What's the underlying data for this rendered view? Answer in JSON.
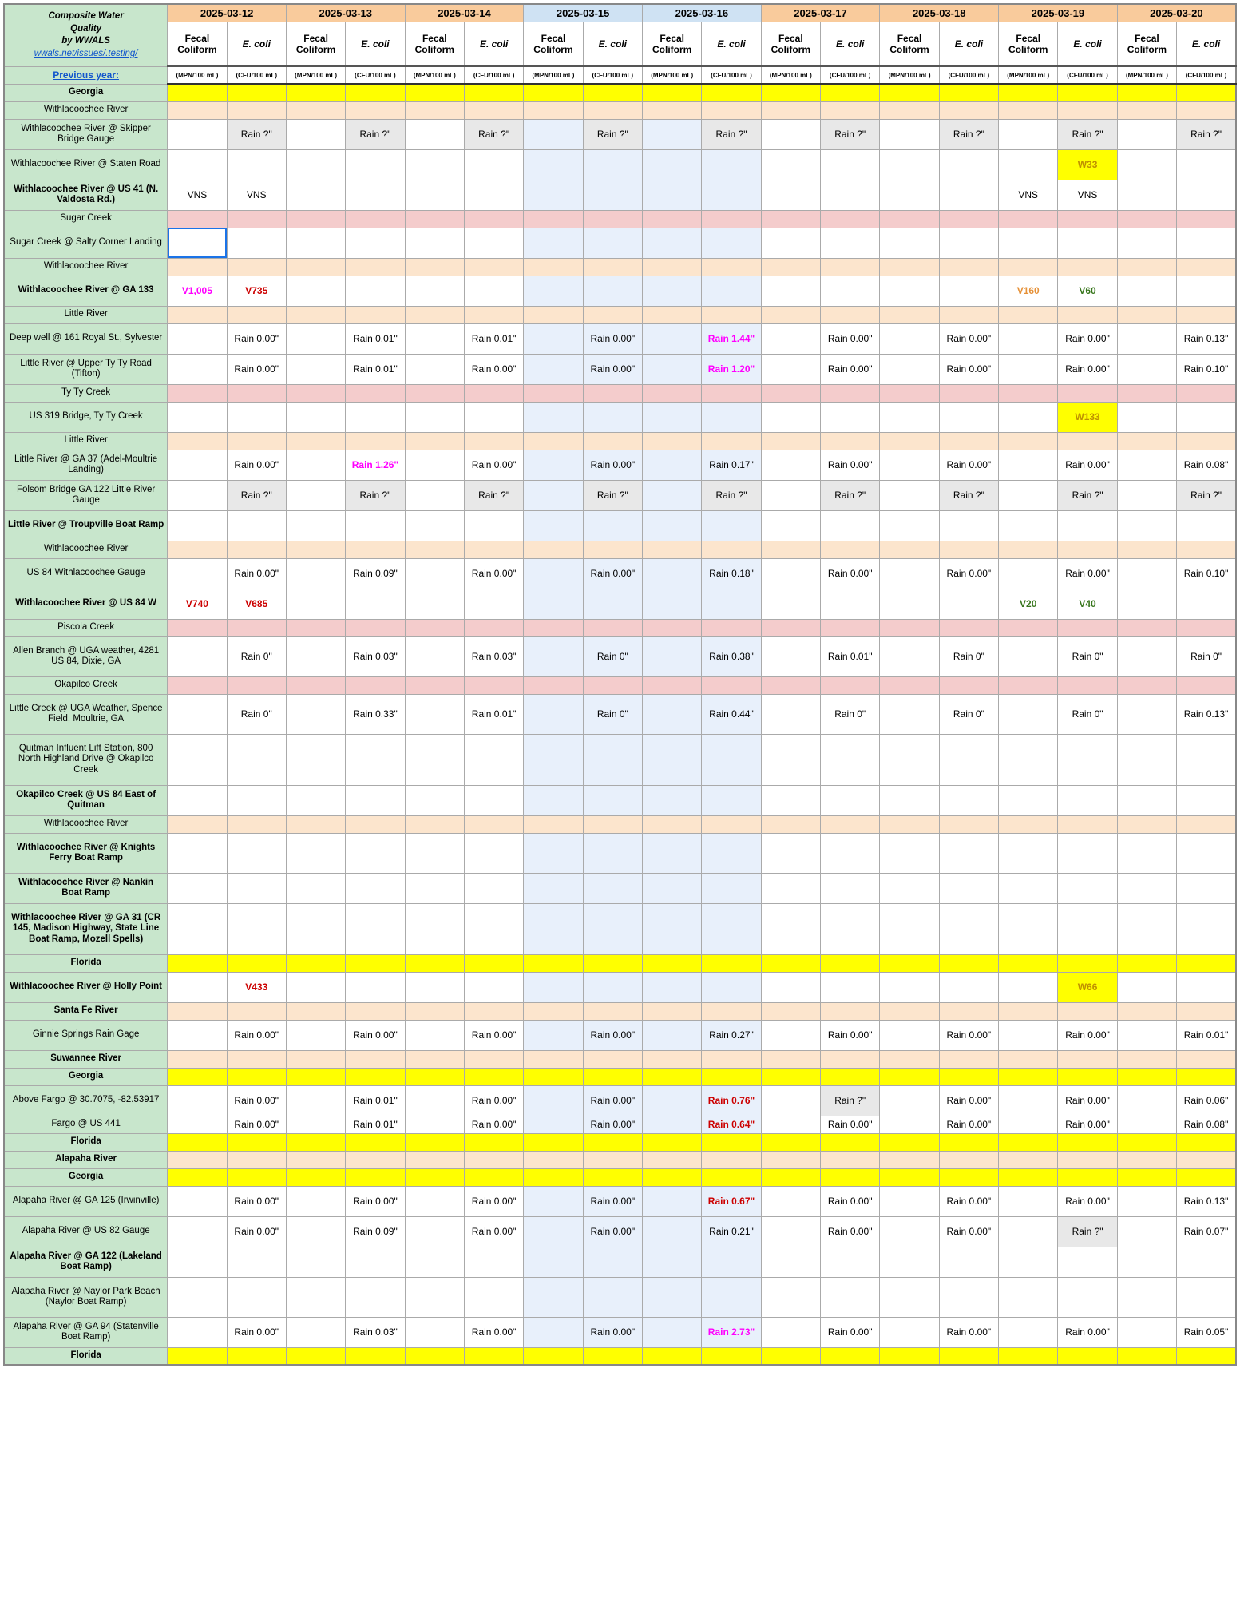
{
  "header": {
    "title_lines": [
      "Composite Water",
      "Quality",
      "by WWALS"
    ],
    "link1_text": "wwals.net/issues/.testing/",
    "prev_year_label": "Previous year:",
    "dates": [
      "2025-03-12",
      "2025-03-13",
      "2025-03-14",
      "2025-03-15",
      "2025-03-16",
      "2025-03-17",
      "2025-03-18",
      "2025-03-19",
      "2025-03-20"
    ],
    "weekend_indices": [
      3,
      4
    ],
    "sub_labels": [
      "Fecal Coliform",
      "E. coli"
    ],
    "unit_labels": [
      "(MPN/100 mL)",
      "(CFU/100 mL)"
    ]
  },
  "colors": {
    "green_hdr": "#c8e6cc",
    "date_orange": "#f9cb9c",
    "date_blue": "#cfe2f3",
    "yellow": "#ffff00",
    "peach": "#fce5cd",
    "pink": "#f4cccc",
    "grey": "#e8e8e8",
    "ltblue": "#e8f0fb",
    "white": "#ffffff"
  },
  "rows": [
    {
      "label": "Georgia",
      "bold": true,
      "fill": "yellow"
    },
    {
      "label": "Withlacoochee River",
      "fill": "peach"
    },
    {
      "label": "Withlacoochee River @ Skipper Bridge Gauge",
      "tall": true,
      "cells": {
        "1": {
          "t": "Rain ?\"",
          "bg": "grey"
        },
        "3": {
          "t": "Rain ?\"",
          "bg": "grey"
        },
        "5": {
          "t": "Rain ?\"",
          "bg": "grey"
        },
        "7": {
          "t": "Rain ?\"",
          "bg": "grey"
        },
        "9": {
          "t": "Rain ?\"",
          "bg": "grey"
        },
        "11": {
          "t": "Rain ?\"",
          "bg": "grey"
        },
        "13": {
          "t": "Rain ?\"",
          "bg": "grey"
        },
        "15": {
          "t": "Rain ?\"",
          "bg": "grey"
        },
        "17": {
          "t": "Rain ?\"",
          "bg": "grey"
        }
      }
    },
    {
      "label": "Withlacoochee River @ Staten Road",
      "tall": true,
      "cells": {
        "15": {
          "t": "W33",
          "bg": "yellow",
          "cls": "txt-olive"
        }
      }
    },
    {
      "label": "Withlacoochee River @ US 41 (N. Valdosta Rd.)",
      "bold": true,
      "tall": true,
      "cells": {
        "0": {
          "t": "VNS"
        },
        "1": {
          "t": "VNS"
        },
        "14": {
          "t": "VNS"
        },
        "15": {
          "t": "VNS"
        }
      }
    },
    {
      "label": "Sugar Creek",
      "fill": "pink"
    },
    {
      "label": "Sugar Creek @ Salty Corner Landing",
      "tall": true,
      "cells": {
        "0": {
          "t": "",
          "bg": "white",
          "sel": true
        }
      }
    },
    {
      "label": "Withlacoochee River",
      "fill": "peach"
    },
    {
      "label": "Withlacoochee River @ GA 133",
      "bold": true,
      "tall": true,
      "cells": {
        "0": {
          "t": "V1,005",
          "cls": "txt-magenta"
        },
        "1": {
          "t": "V735",
          "cls": "txt-red"
        },
        "14": {
          "t": "V160",
          "cls": "txt-orange"
        },
        "15": {
          "t": "V60",
          "cls": "txt-green"
        }
      }
    },
    {
      "label": "Little River",
      "fill": "peach"
    },
    {
      "label": "Deep well @ 161 Royal St., Sylvester",
      "tall": true,
      "cells": {
        "1": {
          "t": "Rain 0.00\""
        },
        "3": {
          "t": "Rain 0.01\""
        },
        "5": {
          "t": "Rain 0.01\""
        },
        "7": {
          "t": "Rain 0.00\""
        },
        "9": {
          "t": "Rain 1.44\"",
          "cls": "txt-magenta"
        },
        "11": {
          "t": "Rain 0.00\""
        },
        "13": {
          "t": "Rain 0.00\""
        },
        "15": {
          "t": "Rain 0.00\""
        },
        "17": {
          "t": "Rain 0.13\""
        }
      }
    },
    {
      "label": "Little River @ Upper Ty Ty Road (Tifton)",
      "tall": true,
      "cells": {
        "1": {
          "t": "Rain 0.00\""
        },
        "3": {
          "t": "Rain 0.01\""
        },
        "5": {
          "t": "Rain 0.00\""
        },
        "7": {
          "t": "Rain 0.00\""
        },
        "9": {
          "t": "Rain 1.20\"",
          "cls": "txt-magenta"
        },
        "11": {
          "t": "Rain 0.00\""
        },
        "13": {
          "t": "Rain 0.00\""
        },
        "15": {
          "t": "Rain 0.00\""
        },
        "17": {
          "t": "Rain 0.10\""
        }
      }
    },
    {
      "label": "Ty Ty Creek",
      "fill": "pink"
    },
    {
      "label": "US 319 Bridge, Ty Ty Creek",
      "tall": true,
      "cells": {
        "15": {
          "t": "W133",
          "bg": "yellow",
          "cls": "txt-olive"
        }
      }
    },
    {
      "label": "Little River",
      "fill": "peach"
    },
    {
      "label": "Little River @ GA 37 (Adel-Moultrie Landing)",
      "tall": true,
      "cells": {
        "1": {
          "t": "Rain 0.00\""
        },
        "3": {
          "t": "Rain 1.26\"",
          "cls": "txt-magenta"
        },
        "5": {
          "t": "Rain 0.00\""
        },
        "7": {
          "t": "Rain 0.00\""
        },
        "9": {
          "t": "Rain 0.17\""
        },
        "11": {
          "t": "Rain 0.00\""
        },
        "13": {
          "t": "Rain 0.00\""
        },
        "15": {
          "t": "Rain 0.00\""
        },
        "17": {
          "t": "Rain 0.08\""
        }
      }
    },
    {
      "label": "Folsom Bridge GA 122 Little River Gauge",
      "tall": true,
      "cells": {
        "1": {
          "t": "Rain ?\"",
          "bg": "grey"
        },
        "3": {
          "t": "Rain ?\"",
          "bg": "grey"
        },
        "5": {
          "t": "Rain ?\"",
          "bg": "grey"
        },
        "7": {
          "t": "Rain ?\"",
          "bg": "grey"
        },
        "9": {
          "t": "Rain ?\"",
          "bg": "grey"
        },
        "11": {
          "t": "Rain ?\"",
          "bg": "grey"
        },
        "13": {
          "t": "Rain ?\"",
          "bg": "grey"
        },
        "15": {
          "t": "Rain ?\"",
          "bg": "grey"
        },
        "17": {
          "t": "Rain ?\"",
          "bg": "grey"
        }
      }
    },
    {
      "label": "Little River @ Troupville Boat Ramp",
      "bold": true,
      "tall": true
    },
    {
      "label": "Withlacoochee River",
      "fill": "peach"
    },
    {
      "label": "US 84 Withlacoochee Gauge",
      "tall": true,
      "cells": {
        "1": {
          "t": "Rain 0.00\""
        },
        "3": {
          "t": "Rain 0.09\""
        },
        "5": {
          "t": "Rain 0.00\""
        },
        "7": {
          "t": "Rain 0.00\""
        },
        "9": {
          "t": "Rain 0.18\""
        },
        "11": {
          "t": "Rain 0.00\""
        },
        "13": {
          "t": "Rain 0.00\""
        },
        "15": {
          "t": "Rain 0.00\""
        },
        "17": {
          "t": "Rain 0.10\""
        }
      }
    },
    {
      "label": "Withlacoochee River @ US 84 W",
      "bold": true,
      "tall": true,
      "cells": {
        "0": {
          "t": "V740",
          "cls": "txt-red"
        },
        "1": {
          "t": "V685",
          "cls": "txt-red"
        },
        "14": {
          "t": "V20",
          "cls": "txt-green"
        },
        "15": {
          "t": "V40",
          "cls": "txt-green"
        }
      }
    },
    {
      "label": "Piscola Creek",
      "fill": "pink"
    },
    {
      "label": "Allen  Branch @ UGA weather, 4281 US 84, Dixie, GA",
      "tall3": true,
      "cells": {
        "1": {
          "t": "Rain 0\""
        },
        "3": {
          "t": "Rain 0.03\""
        },
        "5": {
          "t": "Rain 0.03\""
        },
        "7": {
          "t": "Rain 0\""
        },
        "9": {
          "t": "Rain 0.38\""
        },
        "11": {
          "t": "Rain 0.01\""
        },
        "13": {
          "t": "Rain 0\""
        },
        "15": {
          "t": "Rain 0\""
        },
        "17": {
          "t": "Rain 0\""
        }
      }
    },
    {
      "label": "Okapilco Creek",
      "fill": "pink"
    },
    {
      "label": "Little Creek @ UGA Weather, Spence Field, Moultrie, GA",
      "tall3": true,
      "cells": {
        "1": {
          "t": "Rain 0\""
        },
        "3": {
          "t": "Rain 0.33\""
        },
        "5": {
          "t": "Rain 0.01\""
        },
        "7": {
          "t": "Rain 0\""
        },
        "9": {
          "t": "Rain 0.44\""
        },
        "11": {
          "t": "Rain 0\""
        },
        "13": {
          "t": "Rain 0\""
        },
        "15": {
          "t": "Rain 0\""
        },
        "17": {
          "t": "Rain 0.13\""
        }
      }
    },
    {
      "label": "Quitman Influent Lift Station, 800 North Highland Drive @ Okapilco Creek",
      "tall4": true
    },
    {
      "label": "Okapilco Creek @ US 84 East of Quitman",
      "bold": true,
      "tall": true
    },
    {
      "label": "Withlacoochee River",
      "fill": "peach"
    },
    {
      "label": "Withlacoochee River @ Knights Ferry Boat Ramp",
      "bold": true,
      "tall3": true
    },
    {
      "label": "Withlacoochee River @ Nankin Boat Ramp",
      "bold": true,
      "tall": true
    },
    {
      "label": "Withlacoochee River @ GA 31 (CR 145, Madison Highway, State Line Boat Ramp, Mozell Spells)",
      "bold": true,
      "tall4": true
    },
    {
      "label": "Florida",
      "bold": true,
      "fill": "yellow"
    },
    {
      "label": "Withlacoochee River @ Holly Point",
      "bold": true,
      "tall": true,
      "cells": {
        "1": {
          "t": "V433",
          "cls": "txt-red"
        },
        "15": {
          "t": "W66",
          "bg": "yellow",
          "cls": "txt-olive"
        }
      }
    },
    {
      "label": "Santa Fe River",
      "bold": true,
      "fill": "peach"
    },
    {
      "label": "Ginnie Springs Rain Gage",
      "tall": true,
      "cells": {
        "1": {
          "t": "Rain 0.00\""
        },
        "3": {
          "t": "Rain 0.00\""
        },
        "5": {
          "t": "Rain 0.00\""
        },
        "7": {
          "t": "Rain 0.00\""
        },
        "9": {
          "t": "Rain 0.27\""
        },
        "11": {
          "t": "Rain 0.00\""
        },
        "13": {
          "t": "Rain 0.00\""
        },
        "15": {
          "t": "Rain 0.00\""
        },
        "17": {
          "t": "Rain 0.01\""
        }
      }
    },
    {
      "label": "Suwannee River",
      "bold": true,
      "fill": "peach"
    },
    {
      "label": "Georgia",
      "bold": true,
      "fill": "yellow"
    },
    {
      "label": "Above Fargo @ 30.7075, -82.53917",
      "tall": true,
      "cells": {
        "1": {
          "t": "Rain 0.00\""
        },
        "3": {
          "t": "Rain 0.01\""
        },
        "5": {
          "t": "Rain 0.00\""
        },
        "7": {
          "t": "Rain 0.00\""
        },
        "9": {
          "t": "Rain 0.76\"",
          "cls": "txt-red"
        },
        "11": {
          "t": "Rain ?\"",
          "bg": "grey"
        },
        "13": {
          "t": "Rain 0.00\""
        },
        "15": {
          "t": "Rain 0.00\""
        },
        "17": {
          "t": "Rain 0.06\""
        }
      }
    },
    {
      "label": "Fargo @ US 441",
      "cells": {
        "1": {
          "t": "Rain 0.00\""
        },
        "3": {
          "t": "Rain 0.01\""
        },
        "5": {
          "t": "Rain 0.00\""
        },
        "7": {
          "t": "Rain 0.00\""
        },
        "9": {
          "t": "Rain 0.64\"",
          "cls": "txt-red"
        },
        "11": {
          "t": "Rain 0.00\""
        },
        "13": {
          "t": "Rain 0.00\""
        },
        "15": {
          "t": "Rain 0.00\""
        },
        "17": {
          "t": "Rain 0.08\""
        }
      }
    },
    {
      "label": "Florida",
      "bold": true,
      "fill": "yellow"
    },
    {
      "label": "Alapaha River",
      "bold": true,
      "fill": "peach"
    },
    {
      "label": "Georgia",
      "bold": true,
      "fill": "yellow"
    },
    {
      "label": "Alapaha River @ GA 125 (Irwinville)",
      "tall": true,
      "cells": {
        "1": {
          "t": "Rain 0.00\""
        },
        "3": {
          "t": "Rain 0.00\""
        },
        "5": {
          "t": "Rain 0.00\""
        },
        "7": {
          "t": "Rain 0.00\""
        },
        "9": {
          "t": "Rain 0.67\"",
          "cls": "txt-red"
        },
        "11": {
          "t": "Rain 0.00\""
        },
        "13": {
          "t": "Rain 0.00\""
        },
        "15": {
          "t": "Rain 0.00\""
        },
        "17": {
          "t": "Rain 0.13\""
        }
      }
    },
    {
      "label": "Alapaha River @ US 82 Gauge",
      "tall": true,
      "cells": {
        "1": {
          "t": "Rain 0.00\""
        },
        "3": {
          "t": "Rain 0.09\""
        },
        "5": {
          "t": "Rain 0.00\""
        },
        "7": {
          "t": "Rain 0.00\""
        },
        "9": {
          "t": "Rain 0.21\""
        },
        "11": {
          "t": "Rain 0.00\""
        },
        "13": {
          "t": "Rain 0.00\""
        },
        "15": {
          "t": "Rain ?\"",
          "bg": "grey"
        },
        "17": {
          "t": "Rain 0.07\""
        }
      }
    },
    {
      "label": "Alapaha River @ GA 122 (Lakeland Boat Ramp)",
      "bold": true,
      "tall": true
    },
    {
      "label": "Alapaha River @ Naylor Park Beach (Naylor Boat Ramp)",
      "tall3": true
    },
    {
      "label": "Alapaha River @ GA 94 (Statenville Boat Ramp)",
      "tall": true,
      "cells": {
        "1": {
          "t": "Rain 0.00\""
        },
        "3": {
          "t": "Rain 0.03\""
        },
        "5": {
          "t": "Rain 0.00\""
        },
        "7": {
          "t": "Rain 0.00\""
        },
        "9": {
          "t": "Rain 2.73\"",
          "cls": "txt-magenta"
        },
        "11": {
          "t": "Rain 0.00\""
        },
        "13": {
          "t": "Rain 0.00\""
        },
        "15": {
          "t": "Rain 0.00\""
        },
        "17": {
          "t": "Rain 0.05\""
        }
      }
    },
    {
      "label": "Florida",
      "bold": true,
      "fill": "yellow"
    }
  ]
}
